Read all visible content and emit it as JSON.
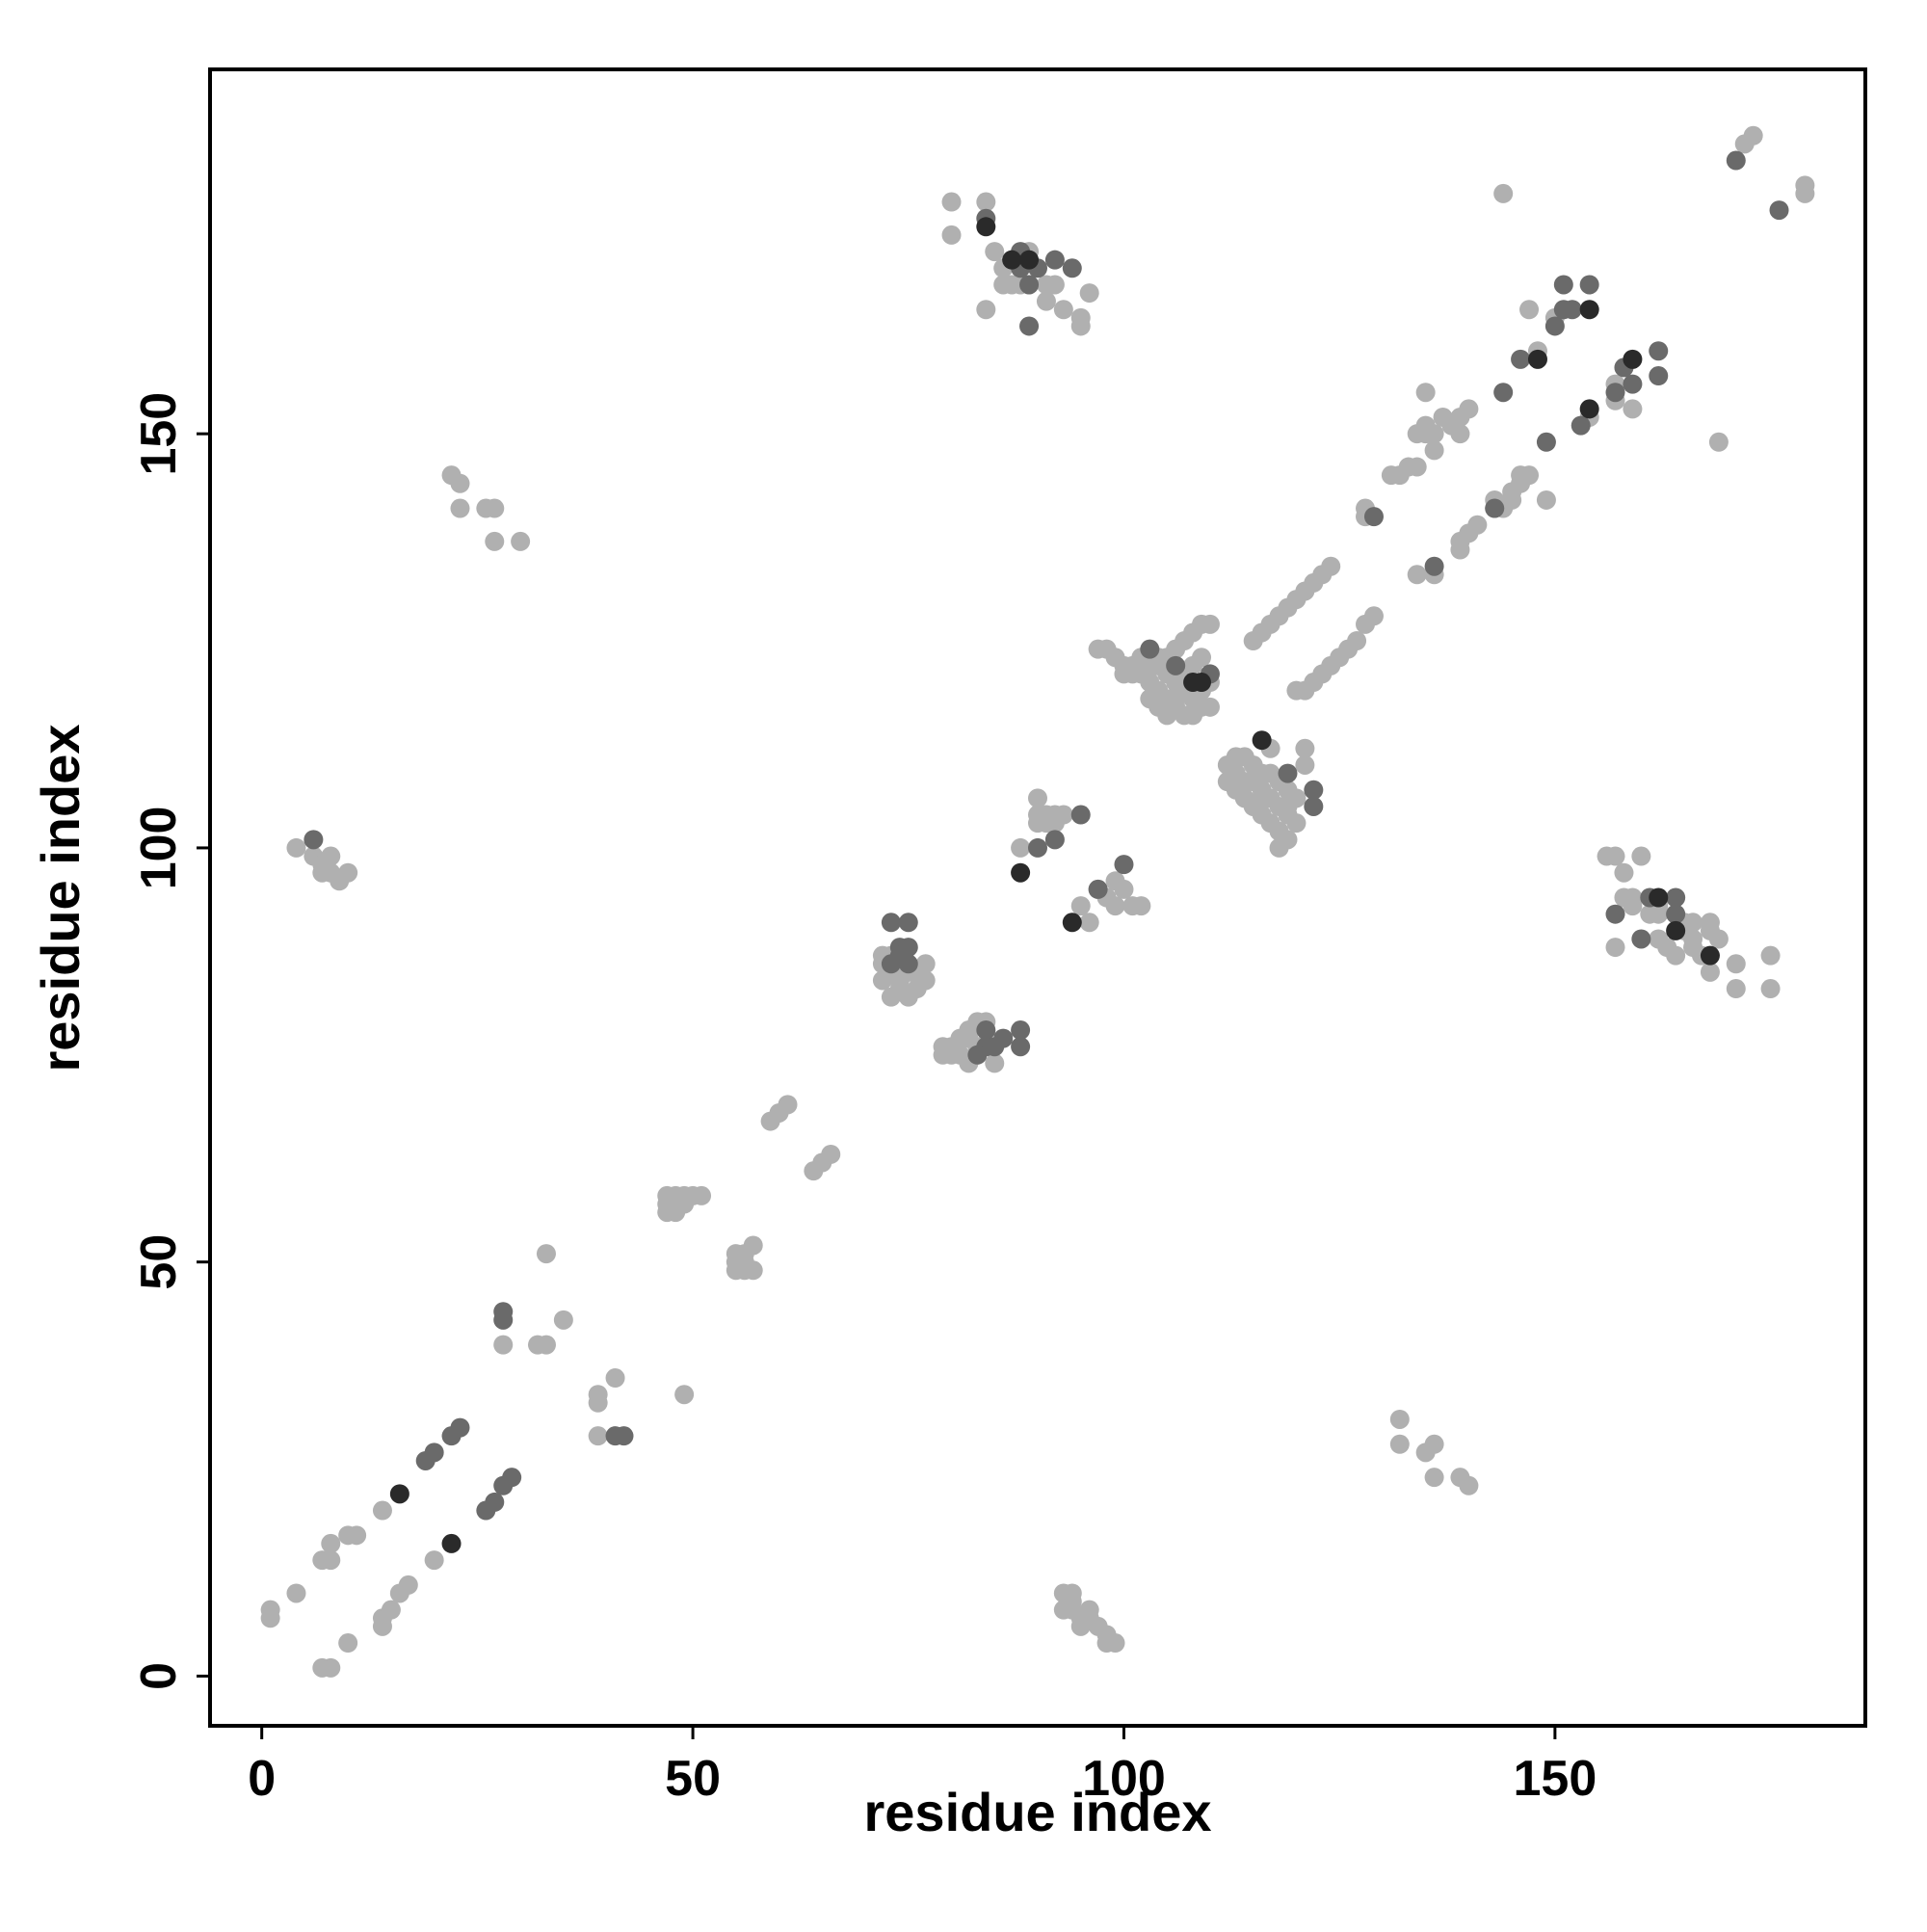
{
  "chart_data": {
    "type": "scatter",
    "xlabel": "residue index",
    "ylabel": "residue index",
    "xlim": [
      -6,
      186
    ],
    "ylim": [
      -6,
      194
    ],
    "xticks": [
      0,
      50,
      100,
      150
    ],
    "yticks": [
      0,
      50,
      100,
      150
    ],
    "grid": false,
    "series": [
      {
        "color": "#b0b0b0",
        "x": [
          1,
          1,
          4,
          7,
          8,
          8,
          10,
          11,
          7,
          8,
          10,
          14,
          14,
          15,
          16,
          17,
          14,
          20,
          28,
          32,
          33,
          35,
          33,
          39,
          39,
          39,
          41,
          49,
          47,
          48,
          49,
          50,
          47,
          48,
          47,
          48,
          49,
          51,
          55,
          55,
          56,
          56,
          57,
          57,
          56,
          55,
          59,
          60,
          61,
          64,
          65,
          66,
          72,
          72,
          73,
          74,
          74,
          75,
          73,
          74,
          76,
          77,
          77,
          76,
          72,
          73,
          75,
          79,
          80,
          81,
          82,
          83,
          80,
          81,
          82,
          83,
          84,
          85,
          82,
          79,
          88,
          90,
          90,
          91,
          92,
          93,
          90,
          91,
          92,
          95,
          96,
          97,
          98,
          99,
          100,
          101,
          102,
          99,
          97,
          98,
          99,
          100,
          101,
          102,
          103,
          104,
          105,
          106,
          107,
          108,
          100,
          101,
          102,
          103,
          104,
          105,
          106,
          107,
          108,
          109,
          106,
          105,
          104,
          103,
          104,
          105,
          106,
          107,
          108,
          109,
          110,
          110,
          107,
          108,
          109,
          110,
          109,
          112,
          113,
          114,
          115,
          116,
          117,
          118,
          119,
          112,
          113,
          114,
          115,
          116,
          117,
          118,
          119,
          120,
          113,
          114,
          115,
          116,
          117,
          118,
          119,
          120,
          118,
          119,
          117,
          116,
          121,
          121,
          115,
          116,
          117,
          118,
          119,
          120,
          121,
          122,
          123,
          124,
          120,
          121,
          122,
          123,
          124,
          125,
          126,
          127,
          128,
          129,
          128,
          128,
          131,
          132,
          133,
          134,
          134,
          135,
          135,
          136,
          137,
          138,
          139,
          140,
          139,
          136,
          135,
          134,
          136,
          139,
          139,
          140,
          141,
          143,
          143,
          144,
          145,
          146,
          147,
          145,
          146,
          149,
          148,
          147,
          150,
          154,
          157,
          157,
          159,
          144,
          169,
          172,
          173,
          179,
          179,
          80,
          84,
          80,
          86,
          89,
          92,
          85,
          86,
          87,
          88,
          89,
          91,
          84,
          93,
          95,
          95,
          96,
          91,
          4,
          6,
          7,
          8,
          9,
          10,
          8,
          7,
          22,
          23,
          23,
          26,
          27,
          27,
          30,
          156,
          157,
          158,
          158,
          160,
          159,
          162,
          162,
          164,
          165,
          165,
          166,
          166,
          166,
          167,
          168,
          168,
          169,
          171,
          171,
          175,
          175,
          157,
          159,
          161,
          162,
          163,
          164,
          168,
          132,
          132,
          135,
          136,
          136,
          139,
          140,
          93,
          94,
          93,
          94,
          95,
          96,
          96,
          97,
          98,
          98,
          99,
          95,
          94
        ],
        "y": [
          7,
          8,
          10,
          14,
          14,
          16,
          17,
          17,
          1,
          1,
          4,
          6,
          7,
          8,
          10,
          11,
          20,
          14,
          40,
          40,
          40,
          43,
          51,
          34,
          33,
          29,
          36,
          34,
          58,
          58,
          58,
          58,
          57,
          57,
          56,
          56,
          57,
          58,
          49,
          50,
          50,
          51,
          52,
          49,
          49,
          51,
          67,
          68,
          69,
          61,
          62,
          63,
          87,
          86,
          85,
          84,
          83,
          82,
          82,
          86,
          85,
          86,
          84,
          83,
          84,
          87,
          85,
          75,
          76,
          77,
          78,
          79,
          75,
          75,
          74,
          76,
          79,
          74,
          77,
          76,
          100,
          106,
          104,
          103,
          104,
          104,
          103,
          104,
          103,
          93,
          91,
          95,
          94,
          96,
          95,
          93,
          93,
          93,
          124,
          124,
          123,
          122,
          121,
          121,
          120,
          119,
          118,
          117,
          116,
          116,
          121,
          122,
          123,
          122,
          122,
          121,
          120,
          119,
          118,
          117,
          124,
          123,
          123,
          118,
          117,
          116,
          118,
          121,
          122,
          119,
          120,
          117,
          125,
          126,
          127,
          127,
          123,
          108,
          107,
          106,
          105,
          104,
          103,
          102,
          101,
          110,
          109,
          111,
          108,
          107,
          106,
          105,
          104,
          103,
          111,
          108,
          110,
          109,
          112,
          108,
          107,
          106,
          100,
          105,
          109,
          106,
          110,
          112,
          125,
          126,
          127,
          128,
          129,
          130,
          131,
          132,
          133,
          134,
          119,
          119,
          120,
          121,
          122,
          123,
          124,
          125,
          127,
          128,
          141,
          140,
          145,
          145,
          146,
          146,
          150,
          150,
          151,
          150,
          152,
          151,
          152,
          153,
          150,
          148,
          155,
          133,
          133,
          136,
          137,
          138,
          139,
          142,
          141,
          141,
          143,
          145,
          145,
          142,
          144,
          142,
          160,
          165,
          164,
          152,
          154,
          156,
          153,
          179,
          149,
          185,
          186,
          179,
          180,
          178,
          178,
          174,
          170,
          172,
          168,
          172,
          168,
          168,
          168,
          168,
          168,
          165,
          165,
          164,
          163,
          167,
          166,
          100,
          99,
          98,
          97,
          96,
          97,
          99,
          97,
          145,
          144,
          141,
          141,
          141,
          137,
          137,
          99,
          99,
          97,
          94,
          99,
          94,
          93,
          92,
          92,
          91,
          90,
          91,
          89,
          88,
          87,
          91,
          90,
          89,
          86,
          83,
          87,
          83,
          88,
          93,
          92,
          89,
          88,
          87,
          85,
          31,
          28,
          27,
          28,
          24,
          24,
          23,
          10,
          10,
          8,
          8,
          7,
          7,
          8,
          6,
          5,
          4,
          4,
          6,
          9
        ]
      },
      {
        "color": "#6a6a6a",
        "x": [
          19,
          20,
          22,
          23,
          26,
          27,
          28,
          29,
          28,
          28,
          41,
          42,
          73,
          75,
          74,
          75,
          74,
          73,
          75,
          84,
          84,
          88,
          88,
          83,
          85,
          86,
          90,
          92,
          95,
          97,
          100,
          103,
          106,
          110,
          119,
          122,
          122,
          129,
          136,
          143,
          144,
          149,
          146,
          150,
          151,
          152,
          151,
          154,
          153,
          157,
          158,
          159,
          162,
          162,
          171,
          176,
          84,
          88,
          88,
          89,
          90,
          92,
          94,
          89,
          6,
          157,
          160,
          161,
          164,
          164
        ],
        "y": [
          26,
          27,
          29,
          30,
          20,
          21,
          23,
          24,
          44,
          43,
          29,
          29,
          91,
          91,
          88,
          88,
          87,
          86,
          86,
          78,
          76,
          78,
          76,
          75,
          76,
          77,
          100,
          101,
          104,
          95,
          98,
          124,
          122,
          121,
          109,
          107,
          105,
          140,
          134,
          141,
          155,
          149,
          159,
          163,
          165,
          165,
          168,
          168,
          151,
          155,
          158,
          156,
          160,
          157,
          183,
          177,
          176,
          172,
          170,
          168,
          170,
          171,
          170,
          163,
          101,
          92,
          89,
          94,
          94,
          92
        ]
      },
      {
        "color": "#2a2a2a",
        "x": [
          16,
          22,
          88,
          94,
          108,
          109,
          116,
          148,
          154,
          154,
          159,
          84,
          87,
          89,
          162,
          164,
          168
        ],
        "y": [
          22,
          16,
          97,
          91,
          120,
          120,
          113,
          159,
          165,
          153,
          159,
          175,
          171,
          171,
          94,
          90,
          87
        ]
      }
    ]
  }
}
